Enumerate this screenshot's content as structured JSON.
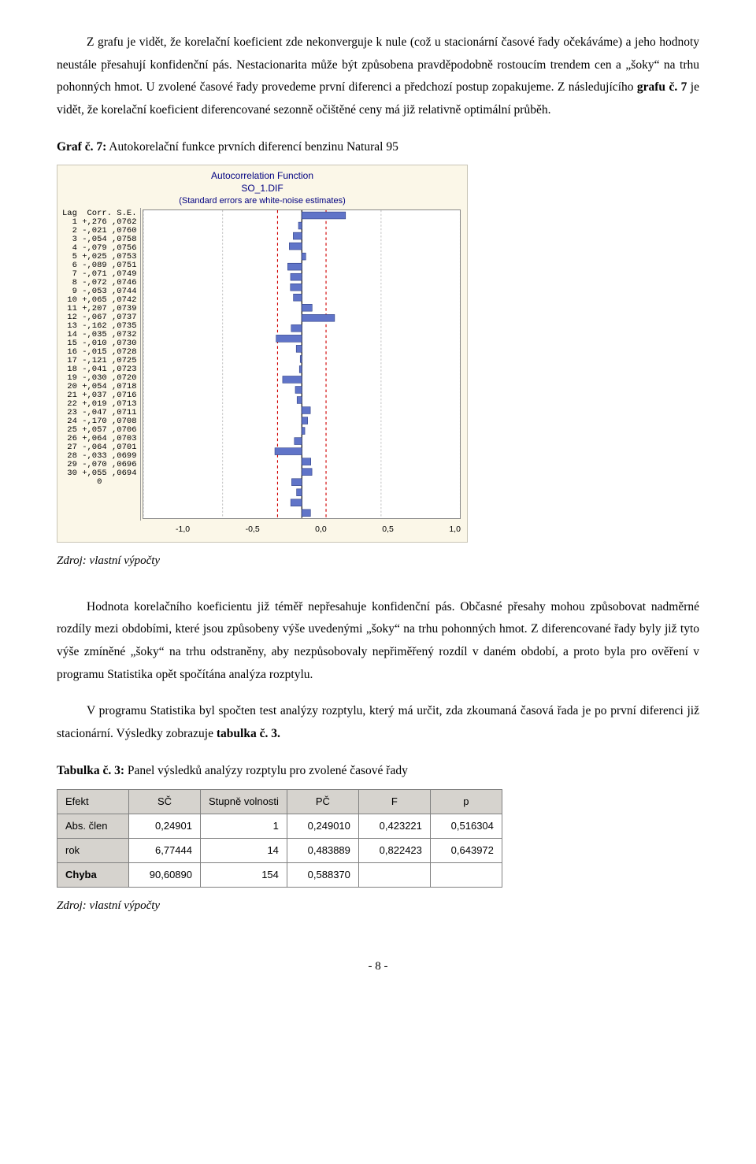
{
  "para1": "Z grafu je vidět, že korelační koeficient zde nekonverguje k nule (což u stacionární časové řady očekáváme) a jeho hodnoty neustále přesahují konfidenční pás. Nestacionarita může být způsobena pravděpodobně rostoucím trendem cen a „šoky“ na trhu pohonných hmot. U zvolené časové řady provedeme první diferenci a předchozí postup zopakujeme. Z následujícího ",
  "para1_boldref": "grafu č. 7",
  "para1_tail": " je vidět, že korelační koeficient diferencované sezonně očištěné ceny má již relativně optimální průběh.",
  "caption_graf7_bold": "Graf č. 7:",
  "caption_graf7_rest": " Autokorelační funkce prvních diferencí benzinu Natural 95",
  "acf": {
    "title_line1": "Autocorrelation Function",
    "title_line2": "SO_1.DIF",
    "title_line3": "(Standard errors are white-noise estimates)",
    "header_lag": "Lag",
    "header_corr": "Corr.",
    "header_se": "S.E.",
    "rows": [
      {
        "lag": 1,
        "corr": 0.276,
        "se": 0.0762
      },
      {
        "lag": 2,
        "corr": -0.021,
        "se": 0.076
      },
      {
        "lag": 3,
        "corr": -0.054,
        "se": 0.0758
      },
      {
        "lag": 4,
        "corr": -0.079,
        "se": 0.0756
      },
      {
        "lag": 5,
        "corr": 0.025,
        "se": 0.0753
      },
      {
        "lag": 6,
        "corr": -0.089,
        "se": 0.0751
      },
      {
        "lag": 7,
        "corr": -0.071,
        "se": 0.0749
      },
      {
        "lag": 8,
        "corr": -0.072,
        "se": 0.0746
      },
      {
        "lag": 9,
        "corr": -0.053,
        "se": 0.0744
      },
      {
        "lag": 10,
        "corr": 0.065,
        "se": 0.0742
      },
      {
        "lag": 11,
        "corr": 0.207,
        "se": 0.0739
      },
      {
        "lag": 12,
        "corr": -0.067,
        "se": 0.0737
      },
      {
        "lag": 13,
        "corr": -0.162,
        "se": 0.0735
      },
      {
        "lag": 14,
        "corr": -0.035,
        "se": 0.0732
      },
      {
        "lag": 15,
        "corr": -0.01,
        "se": 0.073
      },
      {
        "lag": 16,
        "corr": -0.015,
        "se": 0.0728
      },
      {
        "lag": 17,
        "corr": -0.121,
        "se": 0.0725
      },
      {
        "lag": 18,
        "corr": -0.041,
        "se": 0.0723
      },
      {
        "lag": 19,
        "corr": -0.03,
        "se": 0.072
      },
      {
        "lag": 20,
        "corr": 0.054,
        "se": 0.0718
      },
      {
        "lag": 21,
        "corr": 0.037,
        "se": 0.0716
      },
      {
        "lag": 22,
        "corr": 0.019,
        "se": 0.0713
      },
      {
        "lag": 23,
        "corr": -0.047,
        "se": 0.0711
      },
      {
        "lag": 24,
        "corr": -0.17,
        "se": 0.0708
      },
      {
        "lag": 25,
        "corr": 0.057,
        "se": 0.0706
      },
      {
        "lag": 26,
        "corr": 0.064,
        "se": 0.0703
      },
      {
        "lag": 27,
        "corr": -0.064,
        "se": 0.0701
      },
      {
        "lag": 28,
        "corr": -0.033,
        "se": 0.0699
      },
      {
        "lag": 29,
        "corr": -0.07,
        "se": 0.0696
      },
      {
        "lag": 30,
        "corr": 0.055,
        "se": 0.0694
      }
    ],
    "xlim": [
      -1.0,
      1.0
    ],
    "xticks": [
      "-1,0",
      "-0,5",
      "0,0",
      "0,5",
      "1,0"
    ],
    "bar_color": "#6074c8",
    "conf_line_color": "#d00000",
    "conf_level": 0.153,
    "zero_line_color": "#000",
    "grid_color": "#c8c8c8",
    "bg_color": "#ffffff"
  },
  "source_label": "Zdroj: vlastní výpočty",
  "para2": "Hodnota korelačního koeficientu již téměř nepřesahuje konfidenční pás. Občasné přesahy mohou způsobovat nadměrné rozdíly mezi obdobími, které jsou způsobeny výše uvedenými „šoky“ na trhu pohonných hmot. Z diferencované řady byly již tyto výše zmíněné „šoky“ na trhu odstraněny, aby nezpůsobovaly nepřiměřený rozdíl v daném období, a proto byla pro ověření v programu Statistika opět spočítána analýza rozptylu.",
  "para3": "V programu Statistika byl spočten test analýzy rozptylu, který má určit, zda zkoumaná časová řada je po první diferenci již stacionární. Výsledky zobrazuje ",
  "para3_boldref": "tabulka č. 3.",
  "caption_tab3_bold": "Tabulka č. 3:",
  "caption_tab3_rest": " Panel výsledků analýzy rozptylu pro zvolené časové řady",
  "anova": {
    "columns": [
      "Efekt",
      "SČ",
      "Stupně volnosti",
      "PČ",
      "F",
      "p"
    ],
    "rows": [
      {
        "label": "Abs. člen",
        "sc": "0,24901",
        "sv": "1",
        "pc": "0,249010",
        "f": "0,423221",
        "p": "0,516304",
        "bold": false
      },
      {
        "label": "rok",
        "sc": "6,77444",
        "sv": "14",
        "pc": "0,483889",
        "f": "0,822423",
        "p": "0,643972",
        "bold": false
      },
      {
        "label": "Chyba",
        "sc": "90,60890",
        "sv": "154",
        "pc": "0,588370",
        "f": "",
        "p": "",
        "bold": true
      }
    ],
    "header_bg": "#d6d3ce",
    "cell_bg": "#ffffff",
    "border_color": "#808080"
  },
  "page_number": "- 8 -"
}
